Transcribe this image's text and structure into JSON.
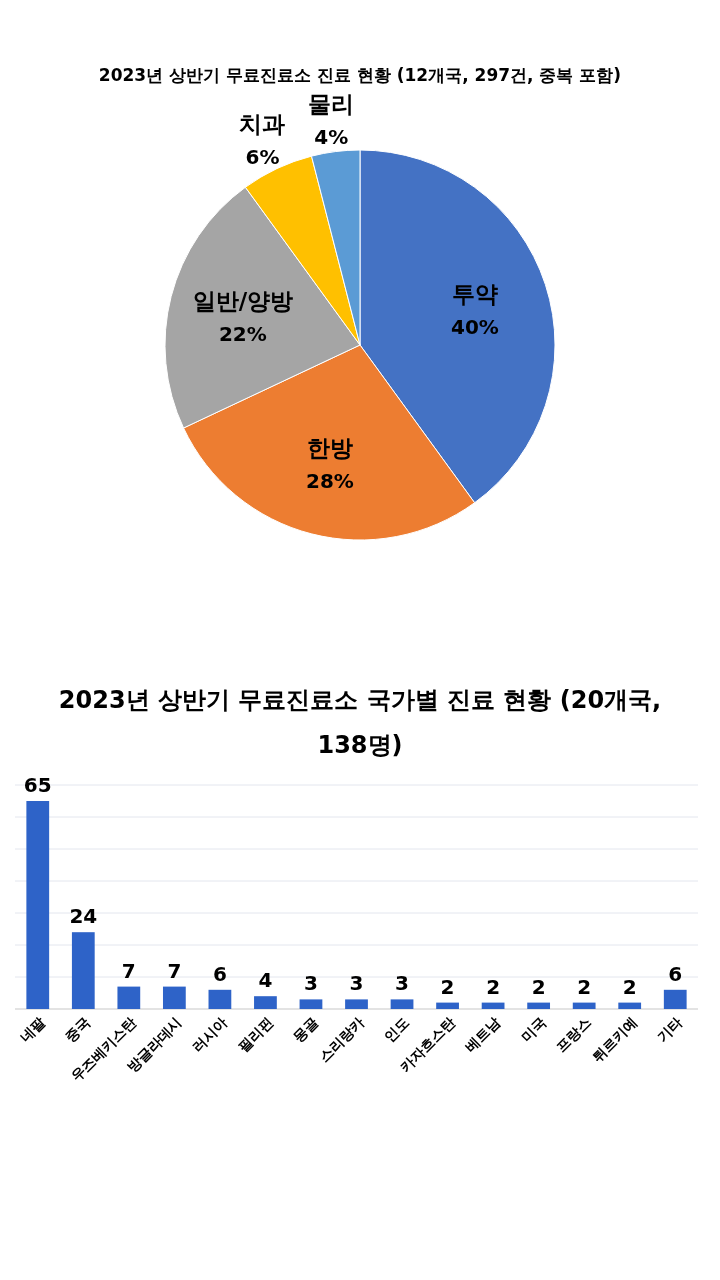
{
  "chart_data": [
    {
      "type": "pie",
      "title": "2023년 상반기 무료진료소 진료 현황 (12개국, 297건, 중복 포함)",
      "categories": [
        "투약",
        "한방",
        "일반/양방",
        "치과",
        "물리"
      ],
      "values": [
        40,
        28,
        22,
        6,
        4
      ],
      "colors": [
        "#4472c4",
        "#ed7d31",
        "#a5a5a5",
        "#ffc000",
        "#5b9bd5"
      ],
      "value_labels": [
        "40%",
        "28%",
        "22%",
        "6%",
        "4%"
      ]
    },
    {
      "type": "bar",
      "title": "2023년 상반기 무료진료소 국가별 진료 현황 (20개국, 138명)",
      "categories": [
        "네팔",
        "중국",
        "우즈베키스탄",
        "방글라데시",
        "러시아",
        "필리핀",
        "몽골",
        "스리랑카",
        "인도",
        "카자흐스탄",
        "베트남",
        "미국",
        "프랑스",
        "튀르키예",
        "기타"
      ],
      "values": [
        65,
        24,
        7,
        7,
        6,
        4,
        3,
        3,
        3,
        2,
        2,
        2,
        2,
        2,
        6
      ],
      "color": "#2e63c8",
      "ylim": [
        0,
        70
      ],
      "yticks": [
        {
          "value": 0,
          "label": null
        },
        {
          "value": 10,
          "label": null
        },
        {
          "value": 20,
          "label": null
        },
        {
          "value": 30,
          "label": null
        },
        {
          "value": 40,
          "label": null
        },
        {
          "value": 50,
          "label": null
        },
        {
          "value": 60,
          "label": null
        },
        {
          "value": 70,
          "label": null
        }
      ],
      "grid": "y",
      "tick_labels": "x",
      "data_labels": true
    }
  ]
}
